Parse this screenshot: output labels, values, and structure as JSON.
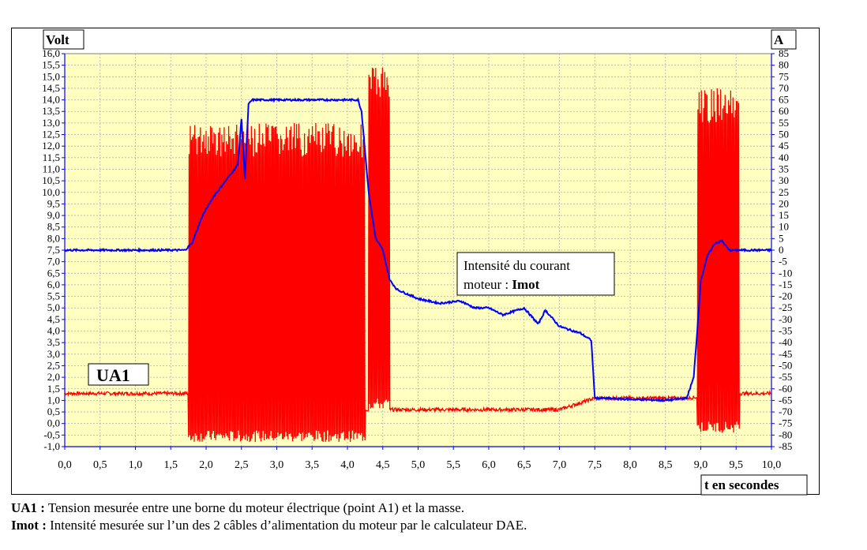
{
  "chart_data": {
    "type": "line",
    "left_axis_title": "Volt",
    "right_axis_title": "A",
    "x_axis_title": "t en secondes",
    "xlim": [
      0,
      10
    ],
    "ylim_left": [
      -1,
      16
    ],
    "ylim_right": [
      -85,
      85
    ],
    "x_ticks": [
      "0,0",
      "0,5",
      "1,0",
      "1,5",
      "2,0",
      "2,5",
      "3,0",
      "3,5",
      "4,0",
      "4,5",
      "5,0",
      "5,5",
      "6,0",
      "6,5",
      "7,0",
      "7,5",
      "8,0",
      "8,5",
      "9,0",
      "9,5",
      "10,0"
    ],
    "y_left_ticks": [
      "16,0",
      "15,5",
      "15,0",
      "14,5",
      "14,0",
      "13,5",
      "13,0",
      "12,5",
      "12,0",
      "11,5",
      "11,0",
      "10,5",
      "10,0",
      "9,5",
      "9,0",
      "8,5",
      "8,0",
      "7,5",
      "7,0",
      "6,5",
      "6,0",
      "5,5",
      "5,0",
      "4,5",
      "4,0",
      "3,5",
      "3,0",
      "2,5",
      "2,0",
      "1,5",
      "1,0",
      "0,5",
      "0,0",
      "-0,5",
      "-1,0"
    ],
    "y_right_ticks": [
      "85",
      "80",
      "75",
      "70",
      "65",
      "60",
      "55",
      "50",
      "45",
      "40",
      "35",
      "30",
      "25",
      "20",
      "15",
      "10",
      "5",
      "0",
      "-5",
      "-10",
      "-15",
      "-20",
      "-25",
      "-30",
      "-35",
      "-40",
      "-45",
      "-50",
      "-55",
      "-60",
      "-65",
      "-70",
      "-75",
      "-80",
      "-85"
    ],
    "grid": true,
    "series": [
      {
        "name": "UA1",
        "color": "#ff0000",
        "axis": "left",
        "baseline": [
          [
            0.0,
            1.3
          ],
          [
            1.75,
            1.3
          ],
          [
            4.25,
            0.6
          ],
          [
            4.6,
            0.6
          ],
          [
            5.0,
            0.6
          ],
          [
            6.0,
            0.6
          ],
          [
            7.0,
            0.6
          ],
          [
            7.5,
            1.1
          ],
          [
            8.0,
            1.1
          ],
          [
            8.8,
            1.1
          ],
          [
            9.55,
            1.3
          ],
          [
            10.0,
            1.3
          ]
        ],
        "oscillation_bursts": [
          {
            "t_start": 1.75,
            "t_end": 4.25,
            "low": -0.8,
            "high": 13.0
          },
          {
            "t_start": 4.3,
            "t_end": 4.6,
            "low": 0.6,
            "high": 15.5
          },
          {
            "t_start": 8.95,
            "t_end": 9.55,
            "low": -0.4,
            "high": 14.5
          }
        ]
      },
      {
        "name": "Imot",
        "color": "#0000ff",
        "axis": "left",
        "points": [
          [
            0.0,
            7.5
          ],
          [
            1.7,
            7.5
          ],
          [
            1.8,
            7.8
          ],
          [
            1.95,
            9.0
          ],
          [
            2.1,
            9.8
          ],
          [
            2.3,
            10.6
          ],
          [
            2.45,
            11.2
          ],
          [
            2.5,
            13.2
          ],
          [
            2.55,
            10.6
          ],
          [
            2.6,
            13.8
          ],
          [
            2.65,
            14.0
          ],
          [
            3.0,
            14.0
          ],
          [
            3.5,
            14.0
          ],
          [
            4.0,
            14.0
          ],
          [
            4.15,
            14.0
          ],
          [
            4.2,
            13.5
          ],
          [
            4.3,
            10.0
          ],
          [
            4.4,
            8.0
          ],
          [
            4.5,
            7.5
          ],
          [
            4.6,
            6.2
          ],
          [
            4.7,
            5.8
          ],
          [
            5.0,
            5.4
          ],
          [
            5.3,
            5.2
          ],
          [
            5.6,
            5.3
          ],
          [
            5.8,
            5.0
          ],
          [
            6.0,
            5.0
          ],
          [
            6.2,
            4.7
          ],
          [
            6.5,
            5.0
          ],
          [
            6.7,
            4.3
          ],
          [
            6.8,
            4.9
          ],
          [
            7.0,
            4.2
          ],
          [
            7.3,
            3.9
          ],
          [
            7.45,
            3.6
          ],
          [
            7.5,
            1.1
          ],
          [
            8.0,
            1.05
          ],
          [
            8.5,
            1.0
          ],
          [
            8.8,
            1.1
          ],
          [
            8.9,
            2.0
          ],
          [
            8.95,
            4.0
          ],
          [
            9.0,
            6.2
          ],
          [
            9.1,
            7.3
          ],
          [
            9.2,
            7.8
          ],
          [
            9.3,
            7.9
          ],
          [
            9.4,
            7.5
          ],
          [
            9.6,
            7.5
          ],
          [
            10.0,
            7.5
          ]
        ]
      }
    ],
    "annotations": {
      "imot_label_line1": "Intensité du courant",
      "imot_label_line2_prefix": "moteur : ",
      "imot_label_line2_bold": "Imot",
      "ua1_label": "UA1"
    }
  },
  "captions": {
    "line1_bold": "UA1 :",
    "line1_text": " Tension mesurée entre une borne du moteur électrique (point A1) et la masse.",
    "line2_bold": "Imot :",
    "line2_text": " Intensité mesurée sur l’un des 2 câbles d’alimentation du moteur par le calculateur DAE."
  }
}
